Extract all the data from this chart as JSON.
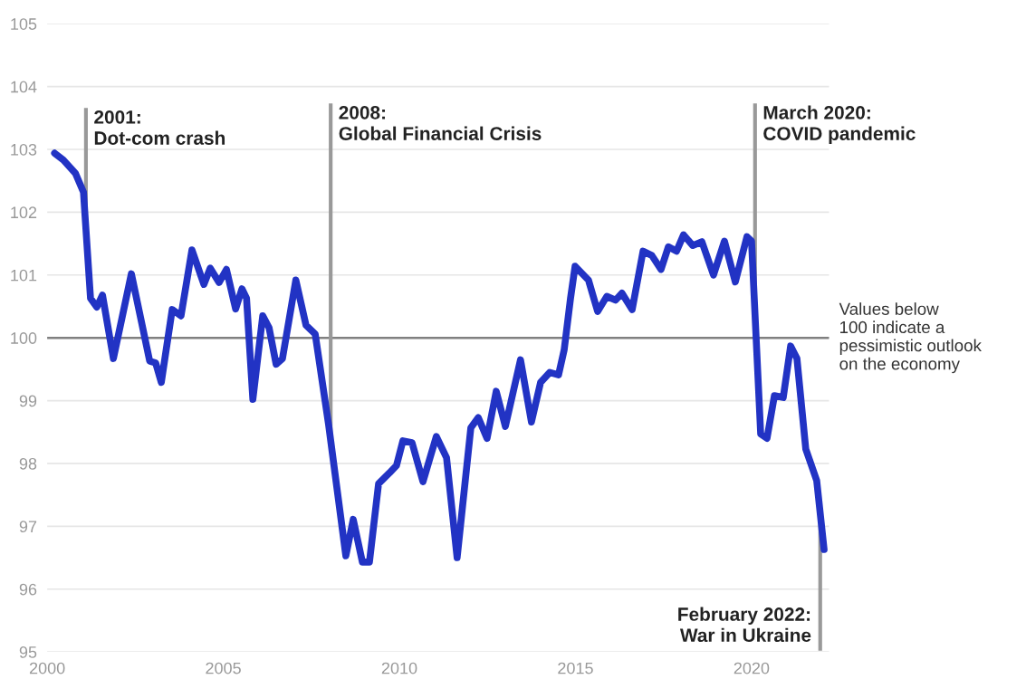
{
  "chart_data": {
    "type": "line",
    "x": [
      2000.21,
      2000.46,
      2000.8,
      2001.03,
      2001.23,
      2001.41,
      2001.57,
      2001.88,
      2002.39,
      2002.91,
      2003.08,
      2003.24,
      2003.55,
      2003.8,
      2004.11,
      2004.45,
      2004.63,
      2004.88,
      2005.09,
      2005.35,
      2005.53,
      2005.66,
      2005.84,
      2006.12,
      2006.3,
      2006.5,
      2006.68,
      2007.06,
      2007.35,
      2007.61,
      2007.99,
      2008.48,
      2008.69,
      2008.95,
      2009.15,
      2009.41,
      2009.72,
      2009.92,
      2010.1,
      2010.36,
      2010.67,
      2011.05,
      2011.34,
      2011.64,
      2012.03,
      2012.24,
      2012.49,
      2012.75,
      2013.01,
      2013.44,
      2013.75,
      2014.01,
      2014.27,
      2014.52,
      2014.68,
      2014.86,
      2014.99,
      2015.37,
      2015.63,
      2015.89,
      2016.14,
      2016.32,
      2016.61,
      2016.92,
      2017.17,
      2017.43,
      2017.64,
      2017.87,
      2018.07,
      2018.33,
      2018.59,
      2018.92,
      2019.23,
      2019.54,
      2019.87,
      2020.0,
      2020.26,
      2020.44,
      2020.65,
      2020.9,
      2021.11,
      2021.29,
      2021.54,
      2021.85,
      2022.06
    ],
    "series": [
      {
        "color": "#2233c4",
        "values": [
          102.94,
          102.83,
          102.62,
          102.32,
          100.63,
          100.49,
          100.68,
          99.67,
          101.02,
          99.63,
          99.6,
          99.29,
          100.45,
          100.35,
          101.4,
          100.85,
          101.11,
          100.88,
          101.09,
          100.46,
          100.78,
          100.63,
          99.02,
          100.35,
          100.16,
          99.58,
          99.67,
          100.92,
          100.2,
          100.06,
          98.62,
          96.53,
          97.11,
          96.43,
          96.43,
          97.68,
          97.85,
          97.97,
          98.36,
          98.33,
          97.71,
          98.43,
          98.09,
          96.5,
          98.57,
          98.73,
          98.4,
          99.15,
          98.59,
          99.65,
          98.66,
          99.29,
          99.45,
          99.41,
          99.81,
          100.63,
          101.14,
          100.92,
          100.42,
          100.66,
          100.6,
          100.71,
          100.45,
          101.38,
          101.31,
          101.09,
          101.45,
          101.38,
          101.64,
          101.47,
          101.53,
          101.0,
          101.54,
          100.89,
          101.61,
          101.54,
          98.47,
          98.4,
          99.08,
          99.05,
          99.87,
          99.67,
          98.23,
          97.73,
          96.63
        ]
      }
    ],
    "xlim": [
      2000,
      2022.2
    ],
    "ylim": [
      95,
      105
    ],
    "xticks": [
      2000,
      2005,
      2010,
      2015,
      2020
    ],
    "yticks": [
      95,
      96,
      97,
      98,
      99,
      100,
      101,
      102,
      103,
      104,
      105
    ],
    "grid": "y",
    "ref_lines": [
      {
        "axis": "y",
        "value": 100,
        "label": "Values below\n100 indicate a\npessimistic outlook\non the economy",
        "color": "#808080"
      },
      {
        "axis": "x",
        "value": 2001.1,
        "label": "2001:\nDot-com crash",
        "color": "#999999"
      },
      {
        "axis": "x",
        "value": 2008.05,
        "label": "2008:\nGlobal Financial Crisis",
        "color": "#999999"
      },
      {
        "axis": "x",
        "value": 2020.1,
        "label": "March 2020:\nCOVID pandemic",
        "color": "#999999"
      },
      {
        "axis": "x",
        "value": 2021.95,
        "label": "February 2022:\nWar in Ukraine",
        "color": "#999999"
      }
    ]
  }
}
